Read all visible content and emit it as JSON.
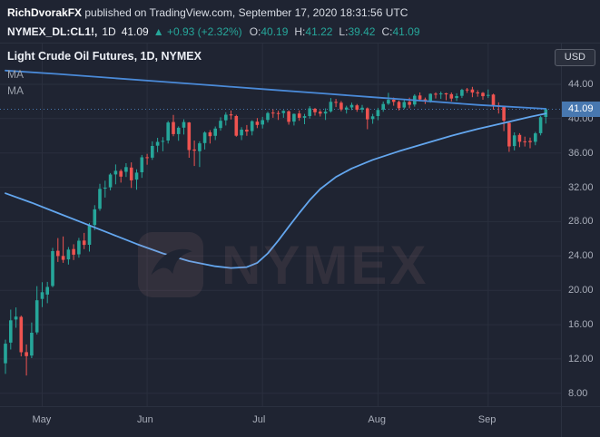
{
  "header": {
    "author": "RichDvorakFX",
    "published": " published on TradingView.com, September 17, 2020 18:31:56 UTC",
    "symbol": "NYMEX_DL:CL1!,",
    "interval": "1D",
    "last_price": "41.09",
    "direction_icon": "▲",
    "change": "+0.93 (+2.32%)",
    "ohlc": [
      {
        "label": "O:",
        "value": "40.19"
      },
      {
        "label": "H:",
        "value": "41.22"
      },
      {
        "label": "L:",
        "value": "39.42"
      },
      {
        "label": "C:",
        "value": "41.09"
      }
    ]
  },
  "legend": {
    "title": "Light Crude Oil Futures, 1D, NYMEX",
    "indicators": [
      "MA",
      "MA"
    ]
  },
  "axis": {
    "currency_label": "USD",
    "last_price_badge": "41.09",
    "badge_color": "#4878b0"
  },
  "watermark": {
    "text": "NYMEX"
  },
  "colors": {
    "background": "#1f2432",
    "grid": "#2a2f3e",
    "up": "#26a69a",
    "down": "#ef5350",
    "badge": "#4878b0",
    "text_primary": "#e4e7ee",
    "text_secondary": "#a9aeba"
  },
  "chart_data": {
    "type": "candlestick",
    "title": "Light Crude Oil Futures, 1D, NYMEX",
    "exchange": "NYMEX",
    "interval": "1D",
    "ylim": [
      6.5,
      48.75
    ],
    "last_price": 41.09,
    "up_color": "#26a69a",
    "down_color": "#ef5350",
    "y_ticks": [
      {
        "label": "44.00",
        "value": 44
      },
      {
        "label": "40.00",
        "value": 40
      },
      {
        "label": "36.00",
        "value": 36
      },
      {
        "label": "32.00",
        "value": 32
      },
      {
        "label": "28.00",
        "value": 28
      },
      {
        "label": "24.00",
        "value": 24
      },
      {
        "label": "20.00",
        "value": 20
      },
      {
        "label": "16.00",
        "value": 16
      },
      {
        "label": "12.00",
        "value": 12
      },
      {
        "label": "8.00",
        "value": 8
      }
    ],
    "x_ticks": [
      {
        "label": "May",
        "index": 7
      },
      {
        "label": "Jun",
        "index": 27
      },
      {
        "label": "Jul",
        "index": 49
      },
      {
        "label": "Aug",
        "index": 71
      },
      {
        "label": "Sep",
        "index": 92
      }
    ],
    "candles": [
      [
        "2020-04-22",
        11.5,
        14.25,
        10.26,
        13.78
      ],
      [
        "2020-04-23",
        13.9,
        17.75,
        13.1,
        16.5
      ],
      [
        "2020-04-24",
        16.6,
        18.0,
        15.64,
        16.94
      ],
      [
        "2020-04-27",
        16.9,
        17.05,
        12.3,
        12.78
      ],
      [
        "2020-04-28",
        12.8,
        13.69,
        10.07,
        12.34
      ],
      [
        "2020-04-29",
        12.4,
        16.25,
        12.1,
        15.06
      ],
      [
        "2020-04-30",
        15.1,
        20.48,
        14.85,
        18.84
      ],
      [
        "2020-05-01",
        19.0,
        20.95,
        18.05,
        19.78
      ],
      [
        "2020-05-04",
        19.5,
        20.98,
        18.5,
        20.39
      ],
      [
        "2020-05-05",
        20.5,
        24.94,
        20.35,
        24.56
      ],
      [
        "2020-05-06",
        24.6,
        26.08,
        23.3,
        23.99
      ],
      [
        "2020-05-07",
        24.0,
        26.27,
        23.2,
        23.55
      ],
      [
        "2020-05-08",
        23.6,
        25.04,
        23.0,
        24.74
      ],
      [
        "2020-05-11",
        24.8,
        25.36,
        23.53,
        24.14
      ],
      [
        "2020-05-12",
        24.2,
        26.1,
        23.8,
        25.78
      ],
      [
        "2020-05-13",
        25.8,
        26.68,
        24.79,
        25.29
      ],
      [
        "2020-05-14",
        25.3,
        27.85,
        24.51,
        27.56
      ],
      [
        "2020-05-15",
        27.6,
        29.92,
        27.0,
        29.43
      ],
      [
        "2020-05-18",
        29.5,
        32.4,
        29.26,
        31.82
      ],
      [
        "2020-05-19",
        31.9,
        32.77,
        30.8,
        31.96
      ],
      [
        "2020-05-20",
        32.0,
        33.66,
        31.64,
        33.49
      ],
      [
        "2020-05-21",
        33.5,
        34.66,
        32.35,
        33.92
      ],
      [
        "2020-05-22",
        33.9,
        34.1,
        32.55,
        33.25
      ],
      [
        "2020-05-26",
        33.8,
        34.81,
        33.2,
        34.35
      ],
      [
        "2020-05-27",
        34.3,
        34.9,
        31.92,
        32.81
      ],
      [
        "2020-05-28",
        32.9,
        34.1,
        31.71,
        33.71
      ],
      [
        "2020-05-29",
        33.75,
        35.77,
        33.1,
        35.49
      ],
      [
        "2020-06-01",
        35.5,
        35.9,
        34.63,
        35.44
      ],
      [
        "2020-06-02",
        35.45,
        37.35,
        35.2,
        36.81
      ],
      [
        "2020-06-03",
        36.85,
        37.76,
        36.1,
        37.29
      ],
      [
        "2020-06-04",
        37.3,
        37.85,
        36.2,
        37.41
      ],
      [
        "2020-06-05",
        37.45,
        39.73,
        37.1,
        39.55
      ],
      [
        "2020-06-08",
        39.6,
        40.44,
        37.95,
        38.19
      ],
      [
        "2020-06-09",
        38.2,
        39.1,
        37.42,
        38.94
      ],
      [
        "2020-06-10",
        38.95,
        39.92,
        38.15,
        39.6
      ],
      [
        "2020-06-11",
        39.55,
        39.6,
        35.44,
        36.34
      ],
      [
        "2020-06-12",
        36.4,
        37.45,
        34.48,
        36.26
      ],
      [
        "2020-06-15",
        36.2,
        37.35,
        34.36,
        37.12
      ],
      [
        "2020-06-16",
        37.15,
        38.52,
        36.4,
        38.38
      ],
      [
        "2020-06-17",
        38.4,
        38.65,
        37.1,
        37.96
      ],
      [
        "2020-06-18",
        38.0,
        39.09,
        37.5,
        38.84
      ],
      [
        "2020-06-19",
        38.9,
        40.15,
        38.6,
        39.75
      ],
      [
        "2020-06-22",
        39.8,
        40.74,
        39.2,
        40.46
      ],
      [
        "2020-06-23",
        40.5,
        40.94,
        39.9,
        40.37
      ],
      [
        "2020-06-24",
        40.3,
        40.45,
        37.89,
        38.01
      ],
      [
        "2020-06-25",
        38.05,
        39.0,
        37.5,
        38.72
      ],
      [
        "2020-06-26",
        38.7,
        39.25,
        38.0,
        38.49
      ],
      [
        "2020-06-29",
        38.55,
        39.8,
        38.05,
        39.7
      ],
      [
        "2020-06-30",
        39.65,
        40.07,
        38.9,
        39.27
      ],
      [
        "2020-07-01",
        39.3,
        40.2,
        38.85,
        39.82
      ],
      [
        "2020-07-02",
        39.85,
        40.8,
        39.55,
        40.65
      ],
      [
        "2020-07-06",
        40.7,
        41.08,
        40.1,
        40.63
      ],
      [
        "2020-07-07",
        40.65,
        40.92,
        39.85,
        40.62
      ],
      [
        "2020-07-08",
        40.65,
        41.0,
        40.1,
        40.9
      ],
      [
        "2020-07-09",
        40.85,
        40.95,
        39.3,
        39.62
      ],
      [
        "2020-07-10",
        39.65,
        40.6,
        39.2,
        40.55
      ],
      [
        "2020-07-13",
        40.6,
        40.95,
        39.75,
        40.1
      ],
      [
        "2020-07-14",
        40.1,
        40.55,
        39.35,
        40.29
      ],
      [
        "2020-07-15",
        40.3,
        41.45,
        40.0,
        41.2
      ],
      [
        "2020-07-16",
        41.15,
        41.25,
        40.35,
        40.75
      ],
      [
        "2020-07-17",
        40.8,
        41.0,
        40.25,
        40.59
      ],
      [
        "2020-07-20",
        40.6,
        41.2,
        39.85,
        40.81
      ],
      [
        "2020-07-21",
        40.85,
        42.4,
        40.7,
        41.96
      ],
      [
        "2020-07-22",
        41.95,
        42.3,
        41.35,
        41.9
      ],
      [
        "2020-07-23",
        41.85,
        42.05,
        40.85,
        41.07
      ],
      [
        "2020-07-24",
        41.05,
        41.5,
        40.6,
        41.29
      ],
      [
        "2020-07-27",
        41.3,
        41.85,
        41.0,
        41.6
      ],
      [
        "2020-07-28",
        41.55,
        41.7,
        40.8,
        41.04
      ],
      [
        "2020-07-29",
        41.05,
        41.6,
        40.7,
        41.27
      ],
      [
        "2020-07-30",
        41.2,
        41.3,
        38.77,
        39.92
      ],
      [
        "2020-07-31",
        39.95,
        40.55,
        39.4,
        40.27
      ],
      [
        "2020-08-03",
        40.3,
        41.26,
        39.81,
        41.01
      ],
      [
        "2020-08-04",
        41.05,
        41.99,
        40.8,
        41.7
      ],
      [
        "2020-08-05",
        41.75,
        43.0,
        41.6,
        42.19
      ],
      [
        "2020-08-06",
        42.2,
        42.45,
        41.5,
        41.95
      ],
      [
        "2020-08-07",
        41.95,
        42.1,
        40.95,
        41.22
      ],
      [
        "2020-08-10",
        41.3,
        42.24,
        41.1,
        41.94
      ],
      [
        "2020-08-11",
        41.95,
        42.44,
        41.2,
        41.61
      ],
      [
        "2020-08-12",
        41.65,
        42.85,
        41.4,
        42.67
      ],
      [
        "2020-08-13",
        42.7,
        43.05,
        42.0,
        42.24
      ],
      [
        "2020-08-14",
        42.25,
        42.45,
        41.7,
        42.01
      ],
      [
        "2020-08-17",
        42.05,
        42.95,
        41.85,
        42.89
      ],
      [
        "2020-08-18",
        42.9,
        43.06,
        42.35,
        42.89
      ],
      [
        "2020-08-19",
        42.9,
        43.15,
        42.3,
        42.93
      ],
      [
        "2020-08-20",
        42.95,
        43.0,
        42.15,
        42.82
      ],
      [
        "2020-08-21",
        42.85,
        43.05,
        42.0,
        42.34
      ],
      [
        "2020-08-24",
        42.4,
        42.95,
        42.05,
        42.62
      ],
      [
        "2020-08-25",
        42.65,
        43.48,
        42.4,
        43.35
      ],
      [
        "2020-08-26",
        43.4,
        43.57,
        43.0,
        43.39
      ],
      [
        "2020-08-27",
        43.4,
        43.7,
        42.5,
        43.04
      ],
      [
        "2020-08-28",
        43.05,
        43.3,
        42.55,
        42.97
      ],
      [
        "2020-08-31",
        43.0,
        43.1,
        42.2,
        42.61
      ],
      [
        "2020-09-01",
        42.65,
        43.4,
        42.4,
        42.76
      ],
      [
        "2020-09-02",
        42.8,
        42.9,
        41.05,
        41.51
      ],
      [
        "2020-09-03",
        41.55,
        41.9,
        40.6,
        41.37
      ],
      [
        "2020-09-04",
        41.4,
        41.5,
        38.55,
        39.77
      ],
      [
        "2020-09-08",
        39.5,
        39.6,
        36.13,
        36.76
      ],
      [
        "2020-09-09",
        36.8,
        38.4,
        36.3,
        38.05
      ],
      [
        "2020-09-10",
        38.1,
        38.3,
        36.68,
        37.3
      ],
      [
        "2020-09-11",
        37.35,
        37.9,
        36.75,
        37.33
      ],
      [
        "2020-09-14",
        37.4,
        37.8,
        36.55,
        37.26
      ],
      [
        "2020-09-15",
        37.3,
        38.45,
        36.9,
        38.28
      ],
      [
        "2020-09-16",
        38.3,
        40.3,
        38.05,
        40.16
      ],
      [
        "2020-09-17",
        40.19,
        41.22,
        39.42,
        41.09
      ]
    ],
    "series": [
      {
        "name": "MA",
        "type": "line",
        "color": "#4a8ad8",
        "points": [
          [
            0,
            45.6
          ],
          [
            10,
            45.2
          ],
          [
            20,
            44.75
          ],
          [
            30,
            44.3
          ],
          [
            40,
            43.85
          ],
          [
            50,
            43.4
          ],
          [
            60,
            42.95
          ],
          [
            70,
            42.5
          ],
          [
            80,
            42.05
          ],
          [
            90,
            41.6
          ],
          [
            100,
            41.25
          ],
          [
            103,
            41.15
          ]
        ]
      },
      {
        "name": "MA",
        "type": "line",
        "color": "#63a6ee",
        "points": [
          [
            0,
            31.3
          ],
          [
            5,
            30.2
          ],
          [
            10,
            29.0
          ],
          [
            15,
            27.8
          ],
          [
            20,
            26.6
          ],
          [
            25,
            25.4
          ],
          [
            30,
            24.3
          ],
          [
            35,
            23.4
          ],
          [
            40,
            22.8
          ],
          [
            43,
            22.6
          ],
          [
            46,
            22.7
          ],
          [
            48,
            23.2
          ],
          [
            50,
            24.3
          ],
          [
            52,
            25.8
          ],
          [
            54,
            27.4
          ],
          [
            56,
            29.0
          ],
          [
            58,
            30.5
          ],
          [
            60,
            31.8
          ],
          [
            63,
            33.2
          ],
          [
            66,
            34.2
          ],
          [
            70,
            35.2
          ],
          [
            75,
            36.2
          ],
          [
            80,
            37.1
          ],
          [
            85,
            38.0
          ],
          [
            90,
            38.8
          ],
          [
            95,
            39.5
          ],
          [
            100,
            40.2
          ],
          [
            103,
            40.6
          ]
        ]
      }
    ]
  }
}
